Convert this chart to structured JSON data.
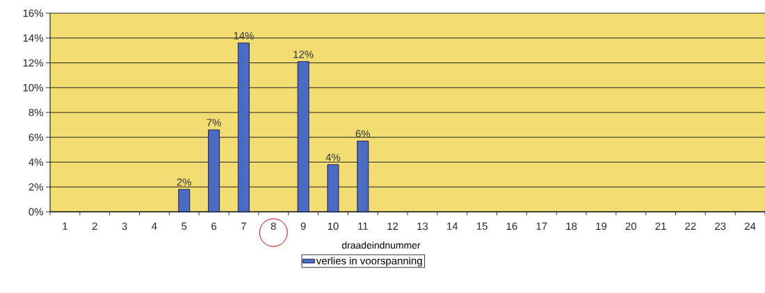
{
  "chart_data": {
    "type": "bar",
    "xlabel": "draadeindnummer",
    "categories": [
      "1",
      "2",
      "3",
      "4",
      "5",
      "6",
      "7",
      "8",
      "9",
      "10",
      "11",
      "12",
      "13",
      "14",
      "15",
      "16",
      "17",
      "18",
      "19",
      "20",
      "21",
      "22",
      "23",
      "24"
    ],
    "series": [
      {
        "name": "verlies in voorspanning",
        "color": "#4a6cc4",
        "values": [
          null,
          null,
          null,
          null,
          1.8,
          6.6,
          13.6,
          null,
          12.1,
          3.8,
          5.7,
          null,
          null,
          null,
          null,
          null,
          null,
          null,
          null,
          null,
          null,
          null,
          null,
          null
        ],
        "value_labels": [
          null,
          null,
          null,
          null,
          "2%",
          "7%",
          "14%",
          null,
          "12%",
          "4%",
          "6%",
          null,
          null,
          null,
          null,
          null,
          null,
          null,
          null,
          null,
          null,
          null,
          null,
          null
        ]
      }
    ],
    "ylim": [
      0,
      16
    ],
    "yticks": [
      {
        "value": 0,
        "label": "0%"
      },
      {
        "value": 2,
        "label": "2%"
      },
      {
        "value": 4,
        "label": "4%"
      },
      {
        "value": 6,
        "label": "6%"
      },
      {
        "value": 8,
        "label": "8%"
      },
      {
        "value": 10,
        "label": "10%"
      },
      {
        "value": 12,
        "label": "12%"
      },
      {
        "value": 14,
        "label": "14%"
      },
      {
        "value": 16,
        "label": "16%"
      }
    ],
    "grid": "y",
    "legend": "bottom"
  }
}
